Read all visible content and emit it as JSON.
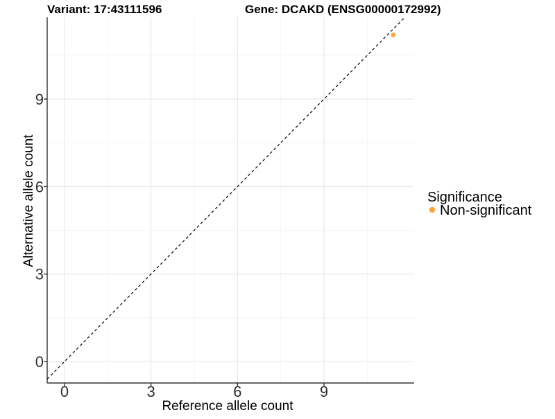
{
  "chart_data": {
    "type": "scatter",
    "title_left": "Variant: 17:43111596",
    "title_right": "Gene: DCAKD (ENSG00000172992)",
    "xlabel": "Reference allele count",
    "ylabel": "Alternative allele count",
    "x_ticks": [
      0,
      3,
      6,
      9
    ],
    "y_ticks": [
      0,
      3,
      6,
      9
    ],
    "x_minor_ticks": [
      1.5,
      4.5,
      7.5,
      10.5
    ],
    "y_minor_ticks": [
      1.5,
      4.5,
      7.5,
      10.5
    ],
    "xlim": [
      -0.6,
      12.1
    ],
    "ylim": [
      -0.75,
      11.8
    ],
    "grid": true,
    "identity_line": {
      "slope": 1,
      "intercept": 0,
      "style": "dashed",
      "color": "#111111"
    },
    "series": [
      {
        "name": "Non-significant",
        "color": "#FAA43A",
        "points": [
          {
            "x": 11.4,
            "y": 11.2
          }
        ]
      }
    ],
    "legend": {
      "position": "right",
      "title": "Significance",
      "entries": [
        {
          "label": "Non-significant",
          "color": "#FAA43A"
        }
      ]
    },
    "colors": {
      "major_grid": "#e6e6e6",
      "minor_grid": "#f2f2f2",
      "axis_line": "#333333",
      "tick_mark": "#333333",
      "point": "#FAA43A"
    }
  }
}
